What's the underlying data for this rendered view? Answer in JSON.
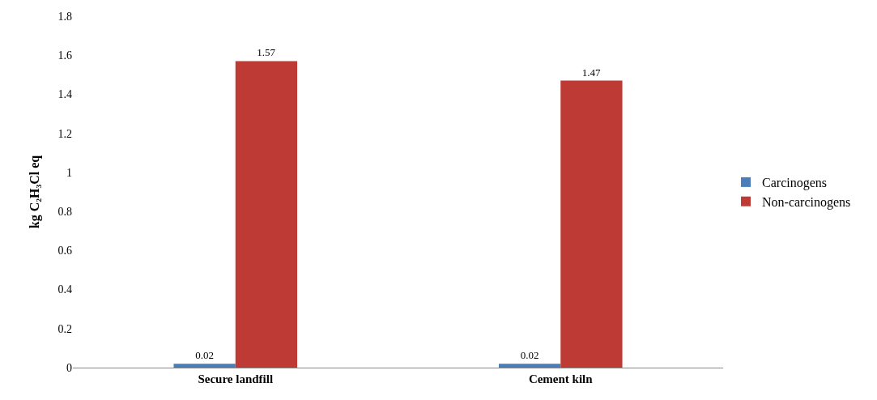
{
  "chart_data": {
    "type": "bar",
    "ylabel": "kg C₂H₃Cl eq",
    "categories": [
      "Secure landfill",
      "Cement kiln"
    ],
    "series": [
      {
        "name": "Carcinogens",
        "color": "#4a7ebb",
        "values": [
          0.02,
          0.02
        ]
      },
      {
        "name": "Non-carcinogens",
        "color": "#be3a34",
        "values": [
          1.57,
          1.47
        ]
      }
    ],
    "ylim": [
      0,
      1.8
    ],
    "yticks": [
      0,
      0.2,
      0.4,
      0.6,
      0.8,
      1,
      1.2,
      1.4,
      1.6,
      1.8
    ],
    "data_labels": true,
    "legend": "right",
    "grid": false
  }
}
